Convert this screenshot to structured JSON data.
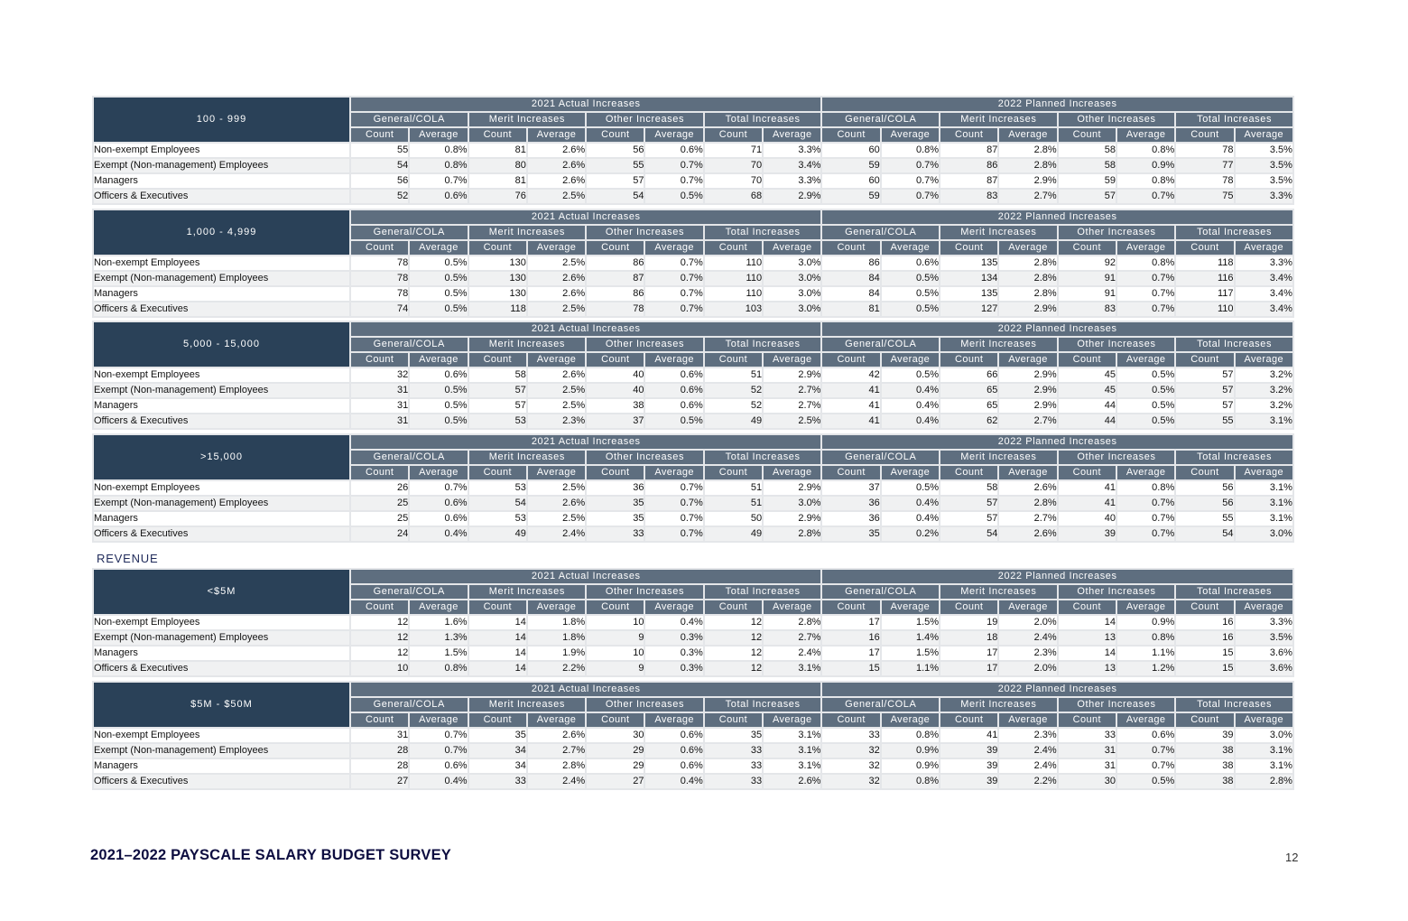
{
  "headers": {
    "groups": [
      "2021 Actual Increases",
      "2022 Planned Increases"
    ],
    "categories": [
      "General/COLA",
      "Merit Increases",
      "Other Increases",
      "Total Increases"
    ],
    "measures": [
      "Count",
      "Average"
    ]
  },
  "row_labels": [
    "Non-exempt Employees",
    "Exempt (Non-management) Employees",
    "Managers",
    "Officers & Executives"
  ],
  "section_label": "REVENUE",
  "footer": {
    "title": "2021–2022 PAYSCALE SALARY BUDGET SURVEY",
    "page_number": "12"
  },
  "tables": [
    {
      "segment": "100 - 999",
      "rows": [
        [
          "55",
          "0.8%",
          "81",
          "2.6%",
          "56",
          "0.6%",
          "71",
          "3.3%",
          "60",
          "0.8%",
          "87",
          "2.8%",
          "58",
          "0.8%",
          "78",
          "3.5%"
        ],
        [
          "54",
          "0.8%",
          "80",
          "2.6%",
          "55",
          "0.7%",
          "70",
          "3.4%",
          "59",
          "0.7%",
          "86",
          "2.8%",
          "58",
          "0.9%",
          "77",
          "3.5%"
        ],
        [
          "56",
          "0.7%",
          "81",
          "2.6%",
          "57",
          "0.7%",
          "70",
          "3.3%",
          "60",
          "0.7%",
          "87",
          "2.9%",
          "59",
          "0.8%",
          "78",
          "3.5%"
        ],
        [
          "52",
          "0.6%",
          "76",
          "2.5%",
          "54",
          "0.5%",
          "68",
          "2.9%",
          "59",
          "0.7%",
          "83",
          "2.7%",
          "57",
          "0.7%",
          "75",
          "3.3%"
        ]
      ]
    },
    {
      "segment": "1,000 - 4,999",
      "rows": [
        [
          "78",
          "0.5%",
          "130",
          "2.5%",
          "86",
          "0.7%",
          "110",
          "3.0%",
          "86",
          "0.6%",
          "135",
          "2.8%",
          "92",
          "0.8%",
          "118",
          "3.3%"
        ],
        [
          "78",
          "0.5%",
          "130",
          "2.6%",
          "87",
          "0.7%",
          "110",
          "3.0%",
          "84",
          "0.5%",
          "134",
          "2.8%",
          "91",
          "0.7%",
          "116",
          "3.4%"
        ],
        [
          "78",
          "0.5%",
          "130",
          "2.6%",
          "86",
          "0.7%",
          "110",
          "3.0%",
          "84",
          "0.5%",
          "135",
          "2.8%",
          "91",
          "0.7%",
          "117",
          "3.4%"
        ],
        [
          "74",
          "0.5%",
          "118",
          "2.5%",
          "78",
          "0.7%",
          "103",
          "3.0%",
          "81",
          "0.5%",
          "127",
          "2.9%",
          "83",
          "0.7%",
          "110",
          "3.4%"
        ]
      ]
    },
    {
      "segment": "5,000 - 15,000",
      "rows": [
        [
          "32",
          "0.6%",
          "58",
          "2.6%",
          "40",
          "0.6%",
          "51",
          "2.9%",
          "42",
          "0.5%",
          "66",
          "2.9%",
          "45",
          "0.5%",
          "57",
          "3.2%"
        ],
        [
          "31",
          "0.5%",
          "57",
          "2.5%",
          "40",
          "0.6%",
          "52",
          "2.7%",
          "41",
          "0.4%",
          "65",
          "2.9%",
          "45",
          "0.5%",
          "57",
          "3.2%"
        ],
        [
          "31",
          "0.5%",
          "57",
          "2.5%",
          "38",
          "0.6%",
          "52",
          "2.7%",
          "41",
          "0.4%",
          "65",
          "2.9%",
          "44",
          "0.5%",
          "57",
          "3.2%"
        ],
        [
          "31",
          "0.5%",
          "53",
          "2.3%",
          "37",
          "0.5%",
          "49",
          "2.5%",
          "41",
          "0.4%",
          "62",
          "2.7%",
          "44",
          "0.5%",
          "55",
          "3.1%"
        ]
      ]
    },
    {
      "segment": ">15,000",
      "rows": [
        [
          "26",
          "0.7%",
          "53",
          "2.5%",
          "36",
          "0.7%",
          "51",
          "2.9%",
          "37",
          "0.5%",
          "58",
          "2.6%",
          "41",
          "0.8%",
          "56",
          "3.1%"
        ],
        [
          "25",
          "0.6%",
          "54",
          "2.6%",
          "35",
          "0.7%",
          "51",
          "3.0%",
          "36",
          "0.4%",
          "57",
          "2.8%",
          "41",
          "0.7%",
          "56",
          "3.1%"
        ],
        [
          "25",
          "0.6%",
          "53",
          "2.5%",
          "35",
          "0.7%",
          "50",
          "2.9%",
          "36",
          "0.4%",
          "57",
          "2.7%",
          "40",
          "0.7%",
          "55",
          "3.1%"
        ],
        [
          "24",
          "0.4%",
          "49",
          "2.4%",
          "33",
          "0.7%",
          "49",
          "2.8%",
          "35",
          "0.2%",
          "54",
          "2.6%",
          "39",
          "0.7%",
          "54",
          "3.0%"
        ]
      ]
    },
    {
      "segment": "<$5M",
      "rows": [
        [
          "12",
          "1.6%",
          "14",
          "1.8%",
          "10",
          "0.4%",
          "12",
          "2.8%",
          "17",
          "1.5%",
          "19",
          "2.0%",
          "14",
          "0.9%",
          "16",
          "3.3%"
        ],
        [
          "12",
          "1.3%",
          "14",
          "1.8%",
          "9",
          "0.3%",
          "12",
          "2.7%",
          "16",
          "1.4%",
          "18",
          "2.4%",
          "13",
          "0.8%",
          "16",
          "3.5%"
        ],
        [
          "12",
          "1.5%",
          "14",
          "1.9%",
          "10",
          "0.3%",
          "12",
          "2.4%",
          "17",
          "1.5%",
          "17",
          "2.3%",
          "14",
          "1.1%",
          "15",
          "3.6%"
        ],
        [
          "10",
          "0.8%",
          "14",
          "2.2%",
          "9",
          "0.3%",
          "12",
          "3.1%",
          "15",
          "1.1%",
          "17",
          "2.0%",
          "13",
          "1.2%",
          "15",
          "3.6%"
        ]
      ]
    },
    {
      "segment": "$5M - $50M",
      "rows": [
        [
          "31",
          "0.7%",
          "35",
          "2.6%",
          "30",
          "0.6%",
          "35",
          "3.1%",
          "33",
          "0.8%",
          "41",
          "2.3%",
          "33",
          "0.6%",
          "39",
          "3.0%"
        ],
        [
          "28",
          "0.7%",
          "34",
          "2.7%",
          "29",
          "0.6%",
          "33",
          "3.1%",
          "32",
          "0.9%",
          "39",
          "2.4%",
          "31",
          "0.7%",
          "38",
          "3.1%"
        ],
        [
          "28",
          "0.6%",
          "34",
          "2.8%",
          "29",
          "0.6%",
          "33",
          "3.1%",
          "32",
          "0.9%",
          "39",
          "2.4%",
          "31",
          "0.7%",
          "38",
          "3.1%"
        ],
        [
          "27",
          "0.4%",
          "33",
          "2.4%",
          "27",
          "0.4%",
          "33",
          "2.6%",
          "32",
          "0.8%",
          "39",
          "2.2%",
          "30",
          "0.5%",
          "38",
          "2.8%"
        ]
      ]
    }
  ]
}
